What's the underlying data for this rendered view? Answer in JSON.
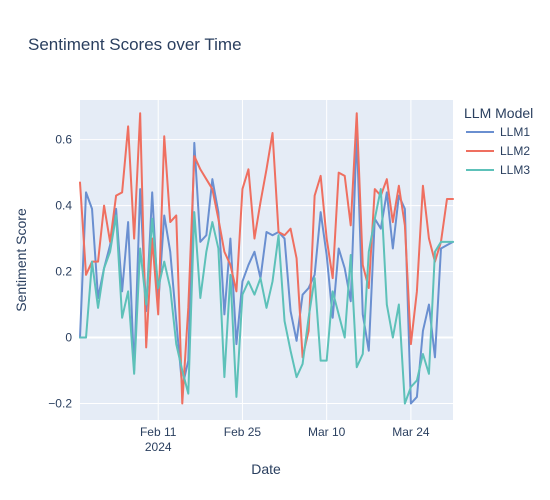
{
  "chart_data": {
    "type": "line",
    "title": "Sentiment Scores over Time",
    "xlabel": "Date",
    "ylabel": "Sentiment Score",
    "x_start": "2024-01-29",
    "x_end": "2024-03-31",
    "x_ticks": [
      {
        "date": "2024-02-11",
        "label": "Feb 11",
        "sublabel": "2024"
      },
      {
        "date": "2024-02-25",
        "label": "Feb 25",
        "sublabel": ""
      },
      {
        "date": "2024-03-10",
        "label": "Mar 10",
        "sublabel": ""
      },
      {
        "date": "2024-03-24",
        "label": "Mar 24",
        "sublabel": ""
      }
    ],
    "ylim": [
      -0.25,
      0.72
    ],
    "y_ticks": [
      {
        "value": -0.2,
        "label": "−0.2"
      },
      {
        "value": 0,
        "label": "0"
      },
      {
        "value": 0.2,
        "label": "0.2"
      },
      {
        "value": 0.4,
        "label": "0.4"
      },
      {
        "value": 0.6,
        "label": "0.6"
      }
    ],
    "grid": true,
    "legend": {
      "title": "LLM Model",
      "position": "top-right"
    },
    "series": [
      {
        "name": "LLM1",
        "color": "#6a8fd0",
        "x": [
          "2024-01-29",
          "2024-01-30",
          "2024-01-31",
          "2024-02-01",
          "2024-02-02",
          "2024-02-03",
          "2024-02-04",
          "2024-02-05",
          "2024-02-06",
          "2024-02-07",
          "2024-02-08",
          "2024-02-09",
          "2024-02-10",
          "2024-02-11",
          "2024-02-12",
          "2024-02-13",
          "2024-02-14",
          "2024-02-15",
          "2024-02-16",
          "2024-02-17",
          "2024-02-18",
          "2024-02-19",
          "2024-02-20",
          "2024-02-21",
          "2024-02-22",
          "2024-02-23",
          "2024-02-24",
          "2024-02-25",
          "2024-02-26",
          "2024-02-27",
          "2024-02-28",
          "2024-02-29",
          "2024-03-01",
          "2024-03-02",
          "2024-03-03",
          "2024-03-04",
          "2024-03-05",
          "2024-03-06",
          "2024-03-07",
          "2024-03-08",
          "2024-03-09",
          "2024-03-10",
          "2024-03-11",
          "2024-03-12",
          "2024-03-13",
          "2024-03-14",
          "2024-03-15",
          "2024-03-16",
          "2024-03-17",
          "2024-03-18",
          "2024-03-19",
          "2024-03-20",
          "2024-03-21",
          "2024-03-22",
          "2024-03-23",
          "2024-03-24",
          "2024-03-25",
          "2024-03-26",
          "2024-03-27",
          "2024-03-28",
          "2024-03-29",
          "2024-03-30",
          "2024-03-31"
        ],
        "values": [
          0.0,
          0.44,
          0.39,
          0.12,
          0.21,
          0.28,
          0.39,
          0.14,
          0.35,
          -0.1,
          0.45,
          0.08,
          0.44,
          0.1,
          0.37,
          0.26,
          0.05,
          -0.15,
          -0.07,
          0.59,
          0.29,
          0.31,
          0.48,
          0.38,
          0.07,
          0.3,
          -0.02,
          0.17,
          0.22,
          0.26,
          0.18,
          0.32,
          0.31,
          0.32,
          0.3,
          0.08,
          -0.01,
          0.13,
          0.15,
          0.19,
          0.38,
          0.25,
          0.06,
          0.27,
          0.21,
          0.11,
          0.62,
          0.07,
          -0.04,
          0.36,
          0.33,
          0.44,
          0.27,
          0.43,
          0.39,
          -0.2,
          -0.18,
          0.02,
          0.1,
          -0.06,
          0.27,
          0.28,
          0.29
        ]
      },
      {
        "name": "LLM2",
        "color": "#ef6f60",
        "x": [
          "2024-01-29",
          "2024-01-30",
          "2024-01-31",
          "2024-02-01",
          "2024-02-02",
          "2024-02-03",
          "2024-02-04",
          "2024-02-05",
          "2024-02-06",
          "2024-02-07",
          "2024-02-08",
          "2024-02-09",
          "2024-02-10",
          "2024-02-11",
          "2024-02-12",
          "2024-02-13",
          "2024-02-14",
          "2024-02-15",
          "2024-02-16",
          "2024-02-17",
          "2024-02-18",
          "2024-02-19",
          "2024-02-20",
          "2024-02-21",
          "2024-02-22",
          "2024-02-23",
          "2024-02-24",
          "2024-02-25",
          "2024-02-26",
          "2024-02-27",
          "2024-02-28",
          "2024-02-29",
          "2024-03-01",
          "2024-03-02",
          "2024-03-03",
          "2024-03-04",
          "2024-03-05",
          "2024-03-06",
          "2024-03-07",
          "2024-03-08",
          "2024-03-09",
          "2024-03-10",
          "2024-03-11",
          "2024-03-12",
          "2024-03-13",
          "2024-03-14",
          "2024-03-15",
          "2024-03-16",
          "2024-03-17",
          "2024-03-18",
          "2024-03-19",
          "2024-03-20",
          "2024-03-21",
          "2024-03-22",
          "2024-03-23",
          "2024-03-24",
          "2024-03-25",
          "2024-03-26",
          "2024-03-27",
          "2024-03-28",
          "2024-03-29",
          "2024-03-30",
          "2024-03-31"
        ],
        "values": [
          0.47,
          0.19,
          0.23,
          0.23,
          0.4,
          0.29,
          0.43,
          0.44,
          0.64,
          0.3,
          0.68,
          -0.03,
          0.3,
          0.07,
          0.61,
          0.35,
          0.37,
          -0.2,
          0.09,
          0.55,
          0.51,
          0.48,
          0.45,
          0.36,
          0.26,
          0.22,
          0.14,
          0.45,
          0.51,
          0.3,
          0.41,
          0.51,
          0.62,
          0.32,
          0.31,
          0.33,
          0.24,
          -0.06,
          0.02,
          0.43,
          0.49,
          0.3,
          0.18,
          0.5,
          0.49,
          0.34,
          0.68,
          0.22,
          0.15,
          0.45,
          0.43,
          0.48,
          0.35,
          0.46,
          0.34,
          -0.02,
          0.14,
          0.46,
          0.3,
          0.23,
          0.29,
          0.42,
          0.42
        ]
      },
      {
        "name": "LLM3",
        "color": "#5dc1b9",
        "x": [
          "2024-01-29",
          "2024-01-30",
          "2024-01-31",
          "2024-02-01",
          "2024-02-02",
          "2024-02-03",
          "2024-02-04",
          "2024-02-05",
          "2024-02-06",
          "2024-02-07",
          "2024-02-08",
          "2024-02-09",
          "2024-02-10",
          "2024-02-11",
          "2024-02-12",
          "2024-02-13",
          "2024-02-14",
          "2024-02-15",
          "2024-02-16",
          "2024-02-17",
          "2024-02-18",
          "2024-02-19",
          "2024-02-20",
          "2024-02-21",
          "2024-02-22",
          "2024-02-23",
          "2024-02-24",
          "2024-02-25",
          "2024-02-26",
          "2024-02-27",
          "2024-02-28",
          "2024-02-29",
          "2024-03-01",
          "2024-03-02",
          "2024-03-03",
          "2024-03-04",
          "2024-03-05",
          "2024-03-06",
          "2024-03-07",
          "2024-03-08",
          "2024-03-09",
          "2024-03-10",
          "2024-03-11",
          "2024-03-12",
          "2024-03-13",
          "2024-03-14",
          "2024-03-15",
          "2024-03-16",
          "2024-03-17",
          "2024-03-18",
          "2024-03-19",
          "2024-03-20",
          "2024-03-21",
          "2024-03-22",
          "2024-03-23",
          "2024-03-24",
          "2024-03-25",
          "2024-03-26",
          "2024-03-27",
          "2024-03-28",
          "2024-03-29",
          "2024-03-30",
          "2024-03-31"
        ],
        "values": [
          0.0,
          0.0,
          0.23,
          0.09,
          0.21,
          0.26,
          0.37,
          0.06,
          0.14,
          -0.11,
          0.27,
          0.1,
          0.36,
          0.15,
          0.23,
          0.15,
          -0.02,
          -0.1,
          -0.17,
          0.38,
          0.12,
          0.26,
          0.35,
          0.27,
          -0.12,
          0.19,
          -0.18,
          0.13,
          0.17,
          0.13,
          0.18,
          0.09,
          0.17,
          0.31,
          0.05,
          -0.04,
          -0.12,
          -0.08,
          0.06,
          0.18,
          -0.07,
          -0.07,
          0.14,
          0.07,
          0.0,
          0.25,
          -0.09,
          -0.05,
          0.26,
          0.36,
          0.45,
          0.1,
          0.0,
          0.1,
          -0.2,
          -0.15,
          -0.13,
          -0.05,
          -0.11,
          0.26,
          0.29,
          0.29,
          0.29
        ]
      }
    ]
  }
}
